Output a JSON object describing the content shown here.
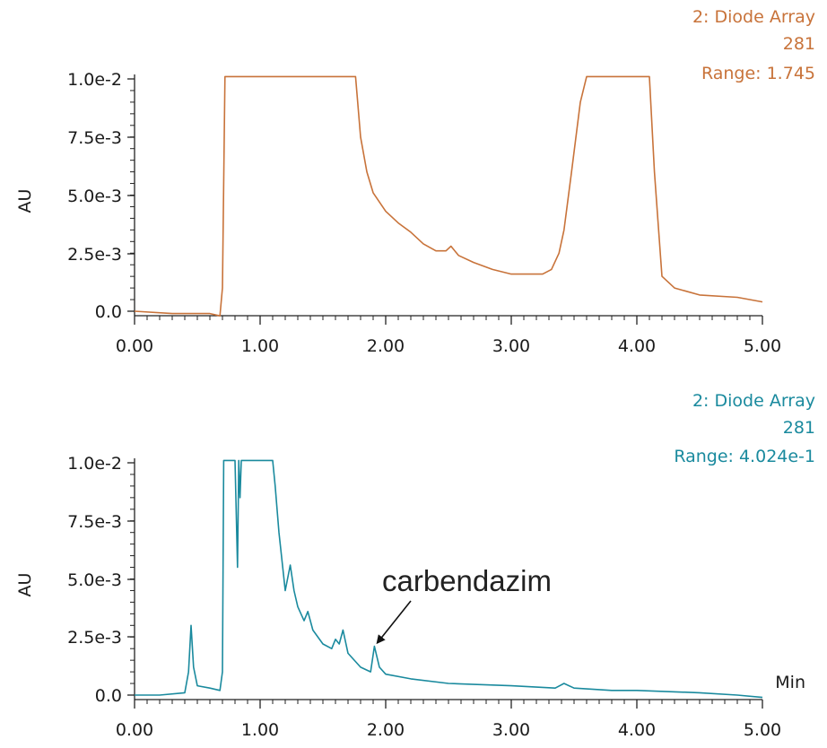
{
  "chart_data": [
    {
      "type": "line",
      "header": [
        "2: Diode Array",
        "281",
        "Range: 1.745"
      ],
      "color": "#c8733a",
      "ylabel": "AU",
      "yticks": [
        "0.0",
        "2.5e-3",
        "5.0e-3",
        "7.5e-3",
        "1.0e-2"
      ],
      "ytick_values": [
        0,
        0.0025,
        0.005,
        0.0075,
        0.01
      ],
      "xticks": [
        "0.00",
        "1.00",
        "2.00",
        "3.00",
        "4.00",
        "5.00"
      ],
      "xtick_values": [
        0,
        1,
        2,
        3,
        4,
        5
      ],
      "xlim": [
        0,
        5
      ],
      "ylim": [
        -0.0003,
        0.0105
      ],
      "x": [
        0.0,
        0.3,
        0.6,
        0.68,
        0.7,
        0.72,
        1.76,
        1.8,
        1.85,
        1.9,
        2.0,
        2.1,
        2.2,
        2.3,
        2.4,
        2.48,
        2.52,
        2.58,
        2.7,
        2.85,
        3.0,
        3.15,
        3.25,
        3.32,
        3.38,
        3.42,
        3.48,
        3.55,
        3.6,
        4.1,
        4.14,
        4.2,
        4.3,
        4.5,
        4.8,
        5.0
      ],
      "values": [
        0.0,
        -0.0001,
        -0.0001,
        -0.0002,
        0.001,
        0.0101,
        0.0101,
        0.0075,
        0.006,
        0.0051,
        0.0043,
        0.0038,
        0.0034,
        0.0029,
        0.0026,
        0.0026,
        0.0028,
        0.0024,
        0.0021,
        0.0018,
        0.0016,
        0.0016,
        0.0016,
        0.0018,
        0.0025,
        0.0035,
        0.006,
        0.009,
        0.0101,
        0.0101,
        0.006,
        0.0015,
        0.001,
        0.0007,
        0.0006,
        0.0004
      ]
    },
    {
      "type": "line",
      "header": [
        "2: Diode Array",
        "281",
        "Range: 4.024e-1"
      ],
      "color": "#1a8a9e",
      "ylabel": "AU",
      "yticks": [
        "0.0",
        "2.5e-3",
        "5.0e-3",
        "7.5e-3",
        "1.0e-2"
      ],
      "ytick_values": [
        0,
        0.0025,
        0.005,
        0.0075,
        0.01
      ],
      "xticks": [
        "0.00",
        "1.00",
        "2.00",
        "3.00",
        "4.00",
        "5.00"
      ],
      "xtick_values": [
        0,
        1,
        2,
        3,
        4,
        5
      ],
      "xlim": [
        0,
        5
      ],
      "ylim": [
        -0.0003,
        0.0105
      ],
      "x_unit_label": "Min",
      "annotation": {
        "text": "carbendazim",
        "x": 1.92,
        "y": 0.0021
      },
      "x": [
        0.0,
        0.2,
        0.4,
        0.43,
        0.45,
        0.47,
        0.5,
        0.6,
        0.68,
        0.7,
        0.71,
        0.8,
        0.82,
        0.83,
        0.84,
        0.85,
        0.86,
        0.87,
        1.1,
        1.12,
        1.15,
        1.2,
        1.24,
        1.27,
        1.3,
        1.35,
        1.38,
        1.42,
        1.5,
        1.57,
        1.6,
        1.63,
        1.66,
        1.7,
        1.8,
        1.88,
        1.91,
        1.95,
        2.0,
        2.2,
        2.5,
        3.0,
        3.35,
        3.42,
        3.5,
        3.8,
        4.0,
        4.5,
        4.8,
        5.0
      ],
      "values": [
        0.0,
        0.0,
        0.0001,
        0.001,
        0.003,
        0.0012,
        0.0004,
        0.0003,
        0.0002,
        0.001,
        0.0101,
        0.0101,
        0.0055,
        0.0101,
        0.0085,
        0.0101,
        0.0101,
        0.0101,
        0.0101,
        0.009,
        0.007,
        0.0045,
        0.0056,
        0.0045,
        0.0038,
        0.0032,
        0.0036,
        0.0028,
        0.0022,
        0.002,
        0.0024,
        0.0022,
        0.0028,
        0.0018,
        0.0012,
        0.001,
        0.0021,
        0.0012,
        0.0009,
        0.0007,
        0.0005,
        0.0004,
        0.0003,
        0.0005,
        0.0003,
        0.0002,
        0.0002,
        0.0001,
        0.0,
        -0.0001
      ]
    }
  ]
}
